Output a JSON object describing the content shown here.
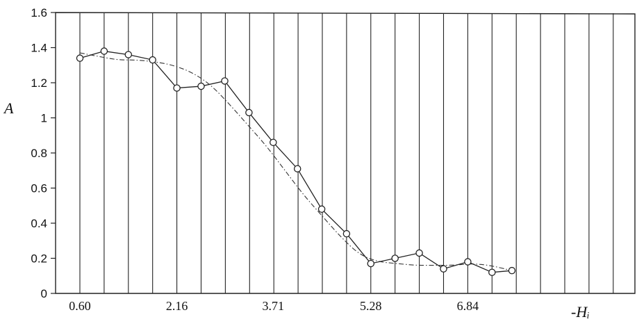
{
  "chart_data": {
    "type": "line",
    "title": "",
    "xlabel": "-Hᵢ",
    "ylabel": "A",
    "ylim": [
      0,
      1.6
    ],
    "yticks": [
      "0",
      "0.2",
      "0.4",
      "0.6",
      "0.8",
      "1",
      "1.2",
      "1.4",
      "1.6"
    ],
    "xtick_labels": [
      "0.60",
      "2.16",
      "3.71",
      "5.28",
      "6.84"
    ],
    "xtick_values": [
      0.6,
      2.16,
      3.71,
      5.28,
      6.84
    ],
    "grid": "vertical lines only",
    "legend": "none",
    "series": [
      {
        "style": "solid line with open circle markers",
        "x": [
          0.6,
          0.99,
          1.38,
          1.77,
          2.16,
          2.55,
          2.93,
          3.32,
          3.71,
          4.1,
          4.49,
          4.89,
          5.28,
          5.67,
          6.06,
          6.45,
          6.84,
          7.23,
          7.55
        ],
        "y": [
          1.34,
          1.38,
          1.36,
          1.33,
          1.17,
          1.18,
          1.21,
          1.03,
          0.86,
          0.71,
          0.48,
          0.34,
          0.17,
          0.2,
          0.23,
          0.14,
          0.18,
          0.12,
          0.13
        ]
      },
      {
        "style": "dash-dot smooth fitted curve",
        "x": [
          0.6,
          0.9,
          1.2,
          1.5,
          1.8,
          2.1,
          2.4,
          2.7,
          3.0,
          3.3,
          3.6,
          3.9,
          4.2,
          4.5,
          4.8,
          5.1,
          5.4,
          5.7,
          6.0,
          6.3,
          6.6,
          6.9,
          7.2,
          7.55
        ],
        "y": [
          1.37,
          1.35,
          1.33,
          1.33,
          1.32,
          1.3,
          1.26,
          1.19,
          1.08,
          0.96,
          0.84,
          0.7,
          0.56,
          0.44,
          0.32,
          0.22,
          0.18,
          0.17,
          0.16,
          0.16,
          0.16,
          0.17,
          0.16,
          0.13
        ]
      }
    ]
  }
}
